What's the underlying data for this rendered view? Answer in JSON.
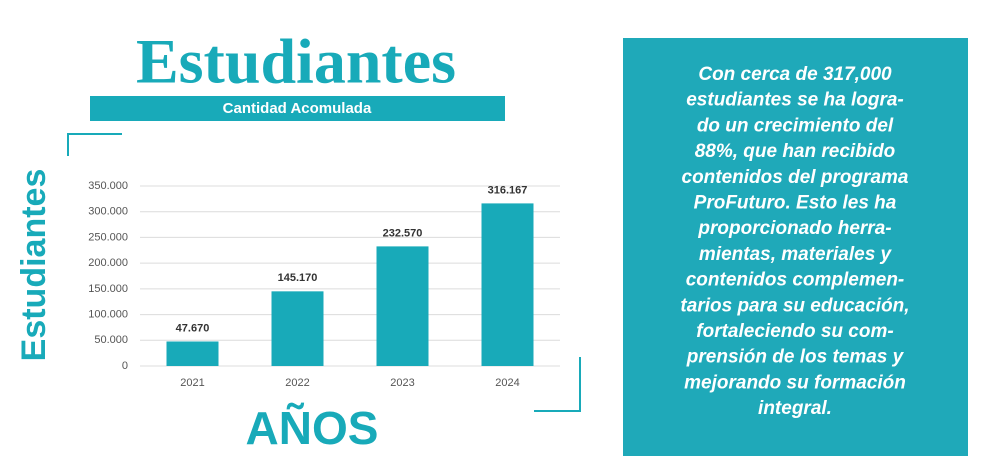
{
  "chart_data": {
    "type": "bar",
    "title": "Estudiantes",
    "subtitle": "Cantidad Acomulada",
    "y_label": "Estudiantes",
    "x_label": "AÑOS",
    "categories": [
      "2021",
      "2022",
      "2023",
      "2024"
    ],
    "values": [
      47670,
      145170,
      232570,
      316167
    ],
    "value_labels": [
      "47.670",
      "145.170",
      "232.570",
      "316.167"
    ],
    "color": "#18aab9",
    "ylim": [
      0,
      350000
    ],
    "yticks": [
      0,
      {
        "value": 50000,
        "label": "50.000"
      },
      {
        "value": 100000,
        "label": "100.000"
      },
      {
        "value": 150000,
        "label": "150.000"
      },
      {
        "value": 200000,
        "label": "200.000"
      },
      {
        "value": 250000,
        "label": "250.000"
      },
      {
        "value": 300000,
        "label": "300.000"
      },
      {
        "value": 350000,
        "label": "350.000"
      }
    ],
    "grid": true
  },
  "side_note": {
    "lines": [
      "Con cerca de 317,000",
      "estudiantes se ha logra-",
      "do un crecimiento del",
      "88%, que han recibido",
      "contenidos del programa",
      "ProFuturo. Esto les ha",
      "proporcionado herra-",
      "mientas, materiales y",
      "contenidos complemen-",
      "tarios para su educación,",
      "fortaleciendo su com-",
      "prensión de los temas y",
      "mejorando su formación",
      "integral."
    ]
  }
}
